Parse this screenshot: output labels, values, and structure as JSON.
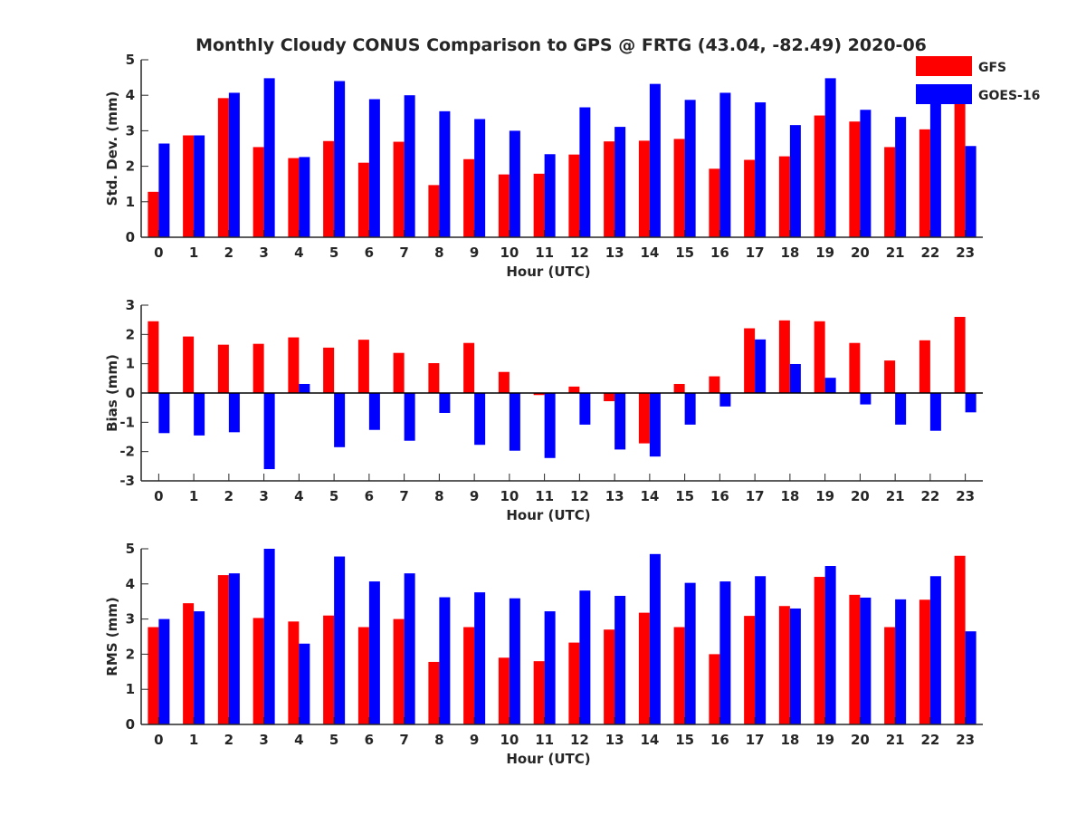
{
  "title": "Monthly Cloudy CONUS Comparison to GPS @ FRTG (43.04, -82.49) 2020-06",
  "legend": {
    "placement": "top-right",
    "entries": [
      {
        "name": "GFS",
        "color": "#ff0000"
      },
      {
        "name": "GOES-16",
        "color": "#0000ff"
      }
    ]
  },
  "chart_data": [
    {
      "type": "bar",
      "xlabel": "Hour (UTC)",
      "ylabel": "Std. Dev. (mm)",
      "ylim": [
        0,
        5
      ],
      "yticks": [
        0,
        1,
        2,
        3,
        4,
        5
      ],
      "categories": [
        "0",
        "1",
        "2",
        "3",
        "4",
        "5",
        "6",
        "7",
        "8",
        "9",
        "10",
        "11",
        "12",
        "13",
        "14",
        "15",
        "16",
        "17",
        "18",
        "19",
        "20",
        "21",
        "22",
        "23"
      ],
      "series": [
        {
          "name": "GFS",
          "color": "#ff0000",
          "values": [
            1.28,
            2.87,
            3.92,
            2.54,
            2.23,
            2.71,
            2.1,
            2.69,
            1.47,
            2.2,
            1.77,
            1.79,
            2.33,
            2.7,
            2.72,
            2.77,
            1.93,
            2.18,
            2.28,
            3.43,
            3.26,
            2.54,
            3.04,
            4.0
          ]
        },
        {
          "name": "GOES-16",
          "color": "#0000ff",
          "values": [
            2.64,
            2.87,
            4.07,
            4.48,
            2.26,
            4.4,
            3.89,
            4.0,
            3.55,
            3.33,
            3.0,
            2.34,
            3.66,
            3.11,
            4.32,
            3.87,
            4.07,
            3.8,
            3.16,
            4.48,
            3.59,
            3.39,
            4.0,
            2.57
          ]
        }
      ]
    },
    {
      "type": "bar",
      "xlabel": "Hour (UTC)",
      "ylabel": "Bias (mm)",
      "ylim": [
        -3,
        3
      ],
      "yticks": [
        -3,
        -2,
        -1,
        0,
        1,
        2,
        3
      ],
      "categories": [
        "0",
        "1",
        "2",
        "3",
        "4",
        "5",
        "6",
        "7",
        "8",
        "9",
        "10",
        "11",
        "12",
        "13",
        "14",
        "15",
        "16",
        "17",
        "18",
        "19",
        "20",
        "21",
        "22",
        "23"
      ],
      "series": [
        {
          "name": "GFS",
          "color": "#ff0000",
          "values": [
            2.45,
            1.93,
            1.65,
            1.68,
            1.9,
            1.55,
            1.82,
            1.37,
            1.02,
            1.71,
            0.72,
            -0.07,
            0.22,
            -0.28,
            -1.72,
            0.31,
            0.57,
            2.21,
            2.48,
            2.45,
            1.71,
            1.11,
            1.8,
            2.6
          ]
        },
        {
          "name": "GOES-16",
          "color": "#0000ff",
          "values": [
            -1.37,
            -1.45,
            -1.34,
            -2.6,
            0.31,
            -1.85,
            -1.26,
            -1.63,
            -0.68,
            -1.77,
            -1.97,
            -2.22,
            -1.08,
            -1.93,
            -2.17,
            -1.08,
            -0.46,
            1.83,
            0.99,
            0.52,
            -0.39,
            -1.08,
            -1.29,
            -0.66
          ]
        }
      ]
    },
    {
      "type": "bar",
      "xlabel": "Hour (UTC)",
      "ylabel": "RMS (mm)",
      "ylim": [
        0,
        5
      ],
      "yticks": [
        0,
        1,
        2,
        3,
        4,
        5
      ],
      "categories": [
        "0",
        "1",
        "2",
        "3",
        "4",
        "5",
        "6",
        "7",
        "8",
        "9",
        "10",
        "11",
        "12",
        "13",
        "14",
        "15",
        "16",
        "17",
        "18",
        "19",
        "20",
        "21",
        "22",
        "23"
      ],
      "series": [
        {
          "name": "GFS",
          "color": "#ff0000",
          "values": [
            2.77,
            3.45,
            4.25,
            3.03,
            2.93,
            3.1,
            2.77,
            3.0,
            1.78,
            2.77,
            1.9,
            1.8,
            2.33,
            2.7,
            3.18,
            2.77,
            2.0,
            3.09,
            3.37,
            4.2,
            3.69,
            2.77,
            3.55,
            4.8
          ]
        },
        {
          "name": "GOES-16",
          "color": "#0000ff",
          "values": [
            3.0,
            3.22,
            4.3,
            5.0,
            2.3,
            4.78,
            4.07,
            4.3,
            3.62,
            3.76,
            3.59,
            3.22,
            3.81,
            3.66,
            4.85,
            4.03,
            4.07,
            4.22,
            3.3,
            4.51,
            3.61,
            3.56,
            4.22,
            2.65
          ]
        }
      ]
    }
  ]
}
